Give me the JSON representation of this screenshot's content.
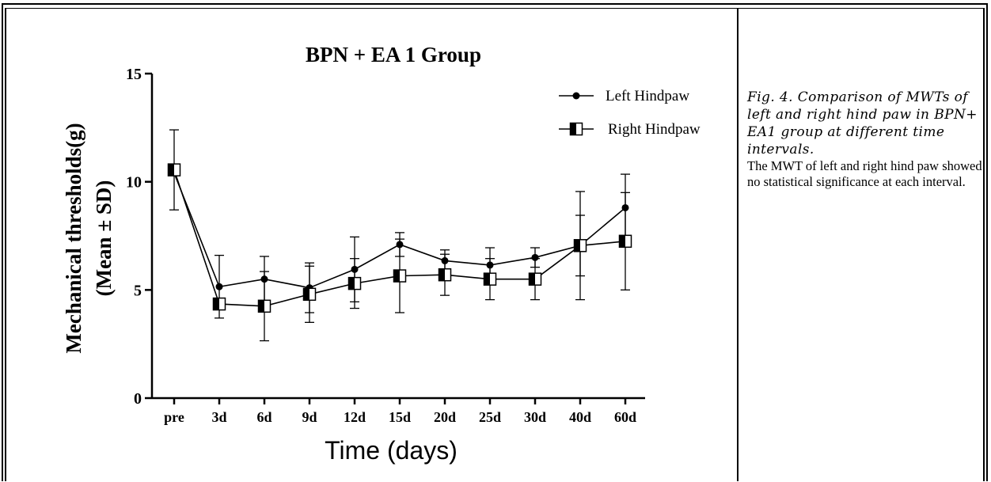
{
  "chart_data": {
    "type": "line",
    "title": "BPN + EA 1 Group",
    "xlabel": "Time (days)",
    "ylabel_line1": "Mechanical thresholds(g)",
    "ylabel_line2": "(Mean ± SD)",
    "categories": [
      "pre",
      "3d",
      "6d",
      "9d",
      "12d",
      "15d",
      "20d",
      "25d",
      "30d",
      "40d",
      "60d"
    ],
    "ylim": [
      0,
      15
    ],
    "yticks": [
      0,
      5,
      10,
      15
    ],
    "grid": false,
    "legend_position": "top-right",
    "series": [
      {
        "name": "Left Hindpaw",
        "marker": "circle",
        "values": [
          10.4,
          5.15,
          5.5,
          5.1,
          5.95,
          7.1,
          6.35,
          6.15,
          6.5,
          7.05,
          8.8
        ],
        "error": [
          null,
          1.45,
          1.05,
          1.15,
          1.5,
          0.55,
          0.5,
          0.8,
          0.45,
          1.4,
          1.55
        ]
      },
      {
        "name": "Right Hindpaw",
        "marker": "half-filled-square",
        "values": [
          10.55,
          4.35,
          4.25,
          4.8,
          5.3,
          5.65,
          5.7,
          5.5,
          5.5,
          7.05,
          7.25
        ],
        "error": [
          1.85,
          null,
          1.6,
          1.3,
          1.15,
          1.7,
          0.95,
          0.95,
          0.95,
          2.5,
          2.25
        ]
      }
    ]
  },
  "caption": {
    "title": "Fig. 4. Comparison of MWTs of left and right hind paw in BPN+ EA1 group at different time intervals.",
    "body": "The MWT of left and right hind paw showed no statistical significance at each interval."
  }
}
